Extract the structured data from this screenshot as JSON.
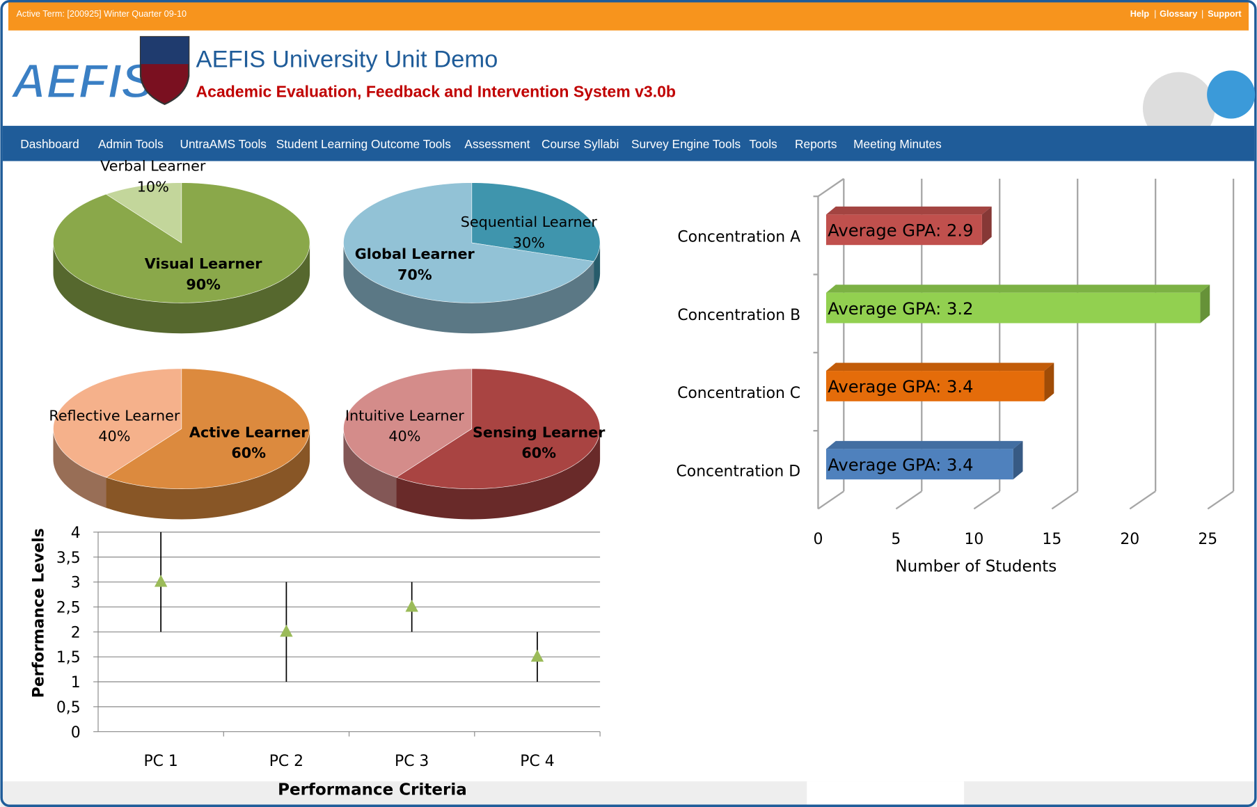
{
  "header": {
    "active_term": "Active Term: [200925] Winter Quarter 09-10",
    "links": [
      "Help",
      "Glossary",
      "Support"
    ],
    "logo": "AEFIS",
    "title": "AEFIS University Unit Demo",
    "subtitle": "Academic Evaluation, Feedback and Intervention System v3.0b"
  },
  "nav": {
    "items": [
      "Dashboard",
      "Admin Tools",
      "UntraAMS Tools",
      "Student Learning Outcome Tools",
      "Assessment",
      "Course Syllabi",
      "Survey Engine Tools",
      "Tools",
      "Reports",
      "Meeting Minutes"
    ]
  },
  "chart_data": [
    {
      "type": "pie",
      "categories": [
        "Visual Learner",
        "Verbal Learner"
      ],
      "values": [
        90,
        10
      ],
      "value_labels": [
        "90%",
        "10%"
      ],
      "colors": [
        "#8aa84a",
        "#c3d69b"
      ]
    },
    {
      "type": "pie",
      "categories": [
        "Sequential Learner",
        "Global Learner"
      ],
      "values": [
        30,
        70
      ],
      "value_labels": [
        "30%",
        "70%"
      ],
      "colors": [
        "#3f95ad",
        "#92c2d6"
      ]
    },
    {
      "type": "pie",
      "categories": [
        "Active Learner",
        "Reflective Learner"
      ],
      "values": [
        60,
        40
      ],
      "value_labels": [
        "60%",
        "40%"
      ],
      "colors": [
        "#dc8a3e",
        "#f5b18b"
      ]
    },
    {
      "type": "pie",
      "categories": [
        "Sensing Learner",
        "Intuitive Learner"
      ],
      "values": [
        60,
        40
      ],
      "value_labels": [
        "60%",
        "40%"
      ],
      "colors": [
        "#a94442",
        "#d48c8a"
      ]
    },
    {
      "type": "bar",
      "orientation": "horizontal",
      "categories": [
        "Concentration A",
        "Concentration B",
        "Concentration C",
        "Concentration D"
      ],
      "values": [
        10,
        24,
        14,
        12
      ],
      "annotations": [
        "Average GPA: 2.9",
        "Average GPA: 3.2",
        "Average GPA: 3.4",
        "Average GPA: 3.4"
      ],
      "colors": [
        "#c0504d",
        "#92d050",
        "#e46c0a",
        "#4f81bd"
      ],
      "xlim": [
        0,
        25
      ],
      "xticks": [
        0,
        5,
        10,
        15,
        20,
        25
      ],
      "xlabel": "Number of Students",
      "grid": true
    },
    {
      "type": "errorbar",
      "categories": [
        "PC 1",
        "PC 2",
        "PC 3",
        "PC 4"
      ],
      "values": [
        3,
        2,
        2.5,
        1.5
      ],
      "errors": [
        1,
        1,
        0.5,
        0.5
      ],
      "color": "#9bbb59",
      "ylim": [
        0,
        4
      ],
      "yticks": [
        0,
        {
          "value": 0.5,
          "label": "0,5"
        },
        1,
        {
          "value": 1.5,
          "label": "1,5"
        },
        2,
        {
          "value": 2.5,
          "label": "2,5"
        },
        3,
        {
          "value": 3.5,
          "label": "3,5"
        },
        4
      ],
      "xlabel": "Performance Criteria",
      "ylabel": "Performance Levels",
      "grid": true
    }
  ]
}
